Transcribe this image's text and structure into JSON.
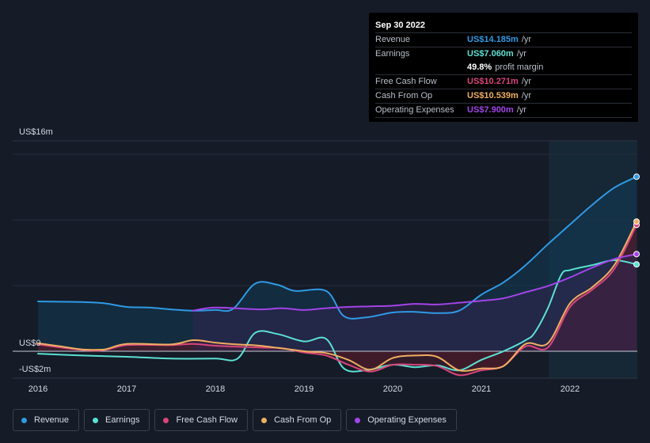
{
  "tooltip": {
    "date": "Sep 30 2022",
    "rows": [
      {
        "label": "Revenue",
        "value": "US$14.185m",
        "unit": "/yr",
        "color": "#2f9ae5"
      },
      {
        "label": "Earnings",
        "value": "US$7.060m",
        "unit": "/yr",
        "color": "#5ce0d2"
      },
      {
        "label": "",
        "value": "49.8%",
        "unit": "profit margin",
        "color": "#ffffff"
      },
      {
        "label": "Free Cash Flow",
        "value": "US$10.271m",
        "unit": "/yr",
        "color": "#d9457b"
      },
      {
        "label": "Cash From Op",
        "value": "US$10.539m",
        "unit": "/yr",
        "color": "#efae62"
      },
      {
        "label": "Operating Expenses",
        "value": "US$7.900m",
        "unit": "/yr",
        "color": "#a344e8"
      }
    ]
  },
  "legend": [
    {
      "label": "Revenue",
      "color": "#2f9ae5"
    },
    {
      "label": "Earnings",
      "color": "#5ce0d2"
    },
    {
      "label": "Free Cash Flow",
      "color": "#d9457b"
    },
    {
      "label": "Cash From Op",
      "color": "#efae62"
    },
    {
      "label": "Operating Expenses",
      "color": "#a344e8"
    }
  ],
  "chart_data": {
    "type": "line",
    "title": "",
    "ylabel_top": "US$16m",
    "ylabel_zero": "US$0",
    "ylabel_bottom": "-US$2m",
    "ylim": [
      -2,
      16
    ],
    "xlim": [
      2016,
      2022.75
    ],
    "x_ticks": [
      "2016",
      "2017",
      "2018",
      "2019",
      "2020",
      "2021",
      "2022"
    ],
    "x_tick_values": [
      2016,
      2017,
      2018,
      2019,
      2020,
      2021,
      2022
    ],
    "forecast_start": 2021.75,
    "series": [
      {
        "name": "Revenue",
        "color": "#2f9ae5",
        "fill": "#123a55",
        "fill_from": 2016,
        "points": [
          [
            2016,
            4.05
          ],
          [
            2016.5,
            4.0
          ],
          [
            2016.75,
            3.9
          ],
          [
            2017,
            3.6
          ],
          [
            2017.25,
            3.55
          ],
          [
            2017.5,
            3.4
          ],
          [
            2017.75,
            3.3
          ],
          [
            2018,
            3.35
          ],
          [
            2018.2,
            3.45
          ],
          [
            2018.45,
            5.5
          ],
          [
            2018.7,
            5.4
          ],
          [
            2018.9,
            4.9
          ],
          [
            2019.25,
            4.9
          ],
          [
            2019.45,
            2.85
          ],
          [
            2019.7,
            2.75
          ],
          [
            2020,
            3.15
          ],
          [
            2020.25,
            3.2
          ],
          [
            2020.5,
            3.1
          ],
          [
            2020.75,
            3.3
          ],
          [
            2021,
            4.6
          ],
          [
            2021.25,
            5.6
          ],
          [
            2021.5,
            7.0
          ],
          [
            2021.75,
            8.7
          ],
          [
            2022,
            10.3
          ],
          [
            2022.25,
            11.9
          ],
          [
            2022.5,
            13.3
          ],
          [
            2022.75,
            14.185
          ]
        ]
      },
      {
        "name": "Earnings",
        "color": "#5ce0d2",
        "points": [
          [
            2016,
            -0.2
          ],
          [
            2016.5,
            -0.35
          ],
          [
            2017,
            -0.45
          ],
          [
            2017.5,
            -0.6
          ],
          [
            2018,
            -0.6
          ],
          [
            2018.25,
            -0.6
          ],
          [
            2018.45,
            1.5
          ],
          [
            2018.7,
            1.4
          ],
          [
            2019,
            0.8
          ],
          [
            2019.25,
            1.0
          ],
          [
            2019.45,
            -1.4
          ],
          [
            2019.7,
            -1.55
          ],
          [
            2020,
            -1.1
          ],
          [
            2020.25,
            -1.3
          ],
          [
            2020.5,
            -1.15
          ],
          [
            2020.75,
            -1.55
          ],
          [
            2021,
            -0.7
          ],
          [
            2021.25,
            0
          ],
          [
            2021.5,
            0.9
          ],
          [
            2021.6,
            1.5
          ],
          [
            2021.75,
            3.5
          ],
          [
            2021.9,
            6.2
          ],
          [
            2022,
            6.6
          ],
          [
            2022.25,
            7.0
          ],
          [
            2022.5,
            7.4
          ],
          [
            2022.75,
            7.06
          ]
        ]
      },
      {
        "name": "Free Cash Flow",
        "color": "#d9457b",
        "fill": "#4a1c2c",
        "fill_from": 2016,
        "points": [
          [
            2016,
            0.55
          ],
          [
            2016.5,
            0.1
          ],
          [
            2016.75,
            0.1
          ],
          [
            2017,
            0.5
          ],
          [
            2017.5,
            0.5
          ],
          [
            2017.75,
            0.6
          ],
          [
            2018,
            0.45
          ],
          [
            2018.5,
            0.3
          ],
          [
            2018.75,
            0.25
          ],
          [
            2019,
            -0.1
          ],
          [
            2019.25,
            -0.35
          ],
          [
            2019.5,
            -1.1
          ],
          [
            2019.75,
            -1.65
          ],
          [
            2020,
            -1.1
          ],
          [
            2020.25,
            -1.1
          ],
          [
            2020.5,
            -1.2
          ],
          [
            2020.75,
            -1.95
          ],
          [
            2021,
            -1.55
          ],
          [
            2021.25,
            -1.2
          ],
          [
            2021.5,
            0.4
          ],
          [
            2021.75,
            0.3
          ],
          [
            2022,
            3.6
          ],
          [
            2022.25,
            5.0
          ],
          [
            2022.5,
            6.7
          ],
          [
            2022.75,
            10.271
          ]
        ]
      },
      {
        "name": "Cash From Op",
        "color": "#efae62",
        "fill": "#4a1c2c",
        "fill_from": 2016,
        "points": [
          [
            2016,
            0.65
          ],
          [
            2016.25,
            0.4
          ],
          [
            2016.5,
            0.15
          ],
          [
            2016.75,
            0.15
          ],
          [
            2017,
            0.6
          ],
          [
            2017.5,
            0.55
          ],
          [
            2017.75,
            0.9
          ],
          [
            2018,
            0.7
          ],
          [
            2018.25,
            0.55
          ],
          [
            2018.5,
            0.45
          ],
          [
            2019,
            0
          ],
          [
            2019.25,
            -0.15
          ],
          [
            2019.5,
            -0.7
          ],
          [
            2019.75,
            -1.5
          ],
          [
            2020,
            -0.55
          ],
          [
            2020.25,
            -0.35
          ],
          [
            2020.5,
            -0.45
          ],
          [
            2020.75,
            -1.55
          ],
          [
            2021,
            -1.4
          ],
          [
            2021.25,
            -1.2
          ],
          [
            2021.5,
            0.6
          ],
          [
            2021.75,
            0.65
          ],
          [
            2022,
            3.9
          ],
          [
            2022.25,
            5.2
          ],
          [
            2022.5,
            7.0
          ],
          [
            2022.75,
            10.539
          ]
        ]
      },
      {
        "name": "Operating Expenses",
        "color": "#a344e8",
        "fill": "#32244f",
        "fill_from": 2017.75,
        "points": [
          [
            2017.75,
            3.3
          ],
          [
            2018,
            3.55
          ],
          [
            2018.5,
            3.4
          ],
          [
            2018.75,
            3.5
          ],
          [
            2019,
            3.35
          ],
          [
            2019.25,
            3.5
          ],
          [
            2019.5,
            3.6
          ],
          [
            2019.75,
            3.65
          ],
          [
            2020,
            3.7
          ],
          [
            2020.25,
            3.85
          ],
          [
            2020.5,
            3.8
          ],
          [
            2020.75,
            3.95
          ],
          [
            2021,
            4.1
          ],
          [
            2021.25,
            4.3
          ],
          [
            2021.5,
            4.8
          ],
          [
            2021.75,
            5.3
          ],
          [
            2022,
            6.0
          ],
          [
            2022.25,
            6.8
          ],
          [
            2022.5,
            7.5
          ],
          [
            2022.75,
            7.9
          ]
        ]
      }
    ]
  }
}
